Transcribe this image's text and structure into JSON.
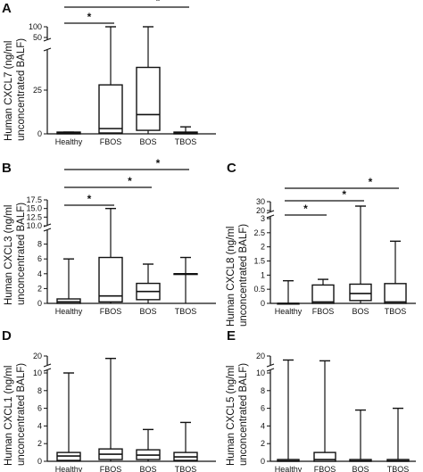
{
  "figure": {
    "panels": [
      {
        "letter": "A",
        "ylabel_line1": "Human CXCL7 (ng/ml",
        "ylabel_line2": "unconcentrated BALF)"
      },
      {
        "letter": "B",
        "ylabel_line1": "Human CXCL3 (ng/ml",
        "ylabel_line2": "unconcentrated BALF)"
      },
      {
        "letter": "C",
        "ylabel_line1": "Human CXCL8 (ng/ml",
        "ylabel_line2": "unconcentrated BALF)"
      },
      {
        "letter": "D",
        "ylabel_line1": "Human CXCL1 (ng/ml",
        "ylabel_line2": "unconcentrated BALF)"
      },
      {
        "letter": "E",
        "ylabel_line1": "Human CXCL5 (ng/ml",
        "ylabel_line2": "unconcentrated BALF)"
      }
    ]
  },
  "chart_data": [
    {
      "panel": "A",
      "type": "boxplot",
      "ylabel": "Human CXCL7 (ng/ml unconcentrated BALF)",
      "categories": [
        "Healthy",
        "FBOS",
        "BOS",
        "TBOS"
      ],
      "ylim": [
        0,
        100
      ],
      "axis_break": {
        "lower_max": 50,
        "upper_ticks": [
          50,
          100
        ]
      },
      "yticks": [
        "0",
        "25",
        "50",
        "100"
      ],
      "boxes": [
        {
          "min": 0,
          "q1": 0,
          "median": 0.5,
          "q3": 1,
          "max": 1
        },
        {
          "min": 0,
          "q1": 0.5,
          "median": 3,
          "q3": 28,
          "max": 100
        },
        {
          "min": 0,
          "q1": 2,
          "median": 11,
          "q3": 38,
          "max": 100
        },
        {
          "min": 0,
          "q1": 0,
          "median": 0.5,
          "q3": 1,
          "max": 4
        }
      ],
      "significance": [
        {
          "from": "Healthy",
          "to": "FBOS",
          "label": "*"
        },
        {
          "from": "Healthy",
          "to": "TBOS",
          "label": "*"
        }
      ]
    },
    {
      "panel": "B",
      "type": "boxplot",
      "ylabel": "Human CXCL3 (ng/ml unconcentrated BALF)",
      "categories": [
        "Healthy",
        "FBOS",
        "BOS",
        "TBOS"
      ],
      "ylim": [
        0,
        17.5
      ],
      "axis_break": {
        "lower_max": 10,
        "upper_ticks": [
          10.0,
          12.5,
          15.0,
          17.5
        ]
      },
      "yticks": [
        "0",
        "2",
        "4",
        "6",
        "8",
        "10.0",
        "12.5",
        "15.0",
        "17.5"
      ],
      "boxes": [
        {
          "min": 0,
          "q1": 0,
          "median": 0.2,
          "q3": 0.6,
          "max": 6
        },
        {
          "min": 0,
          "q1": 0.2,
          "median": 1,
          "q3": 6.2,
          "max": 15
        },
        {
          "min": 0,
          "q1": 0.5,
          "median": 1.6,
          "q3": 2.7,
          "max": 5.3
        },
        {
          "min": 0,
          "q1": 4,
          "median": 4,
          "q3": 4,
          "max": 6.2
        }
      ],
      "significance": [
        {
          "from": "Healthy",
          "to": "FBOS",
          "label": "*"
        },
        {
          "from": "Healthy",
          "to": "BOS",
          "label": "*"
        },
        {
          "from": "Healthy",
          "to": "TBOS",
          "label": "*"
        }
      ]
    },
    {
      "panel": "C",
      "type": "boxplot",
      "ylabel": "Human CXCL8 (ng/ml unconcentrated BALF)",
      "categories": [
        "Healthy",
        "FBOS",
        "BOS",
        "TBOS"
      ],
      "ylim": [
        0,
        30
      ],
      "axis_break": {
        "lower_max": 3,
        "upper_ticks": [
          20,
          30
        ]
      },
      "yticks": [
        "0",
        "0.5",
        "1",
        "1.5",
        "2",
        "2.5",
        "3",
        "20",
        "30"
      ],
      "boxes": [
        {
          "min": 0,
          "q1": 0,
          "median": 0,
          "q3": 0,
          "max": 0.8
        },
        {
          "min": 0,
          "q1": 0,
          "median": 0.05,
          "q3": 0.65,
          "max": 0.85
        },
        {
          "min": 0,
          "q1": 0.1,
          "median": 0.35,
          "q3": 0.68,
          "max": 25
        },
        {
          "min": 0,
          "q1": 0,
          "median": 0.05,
          "q3": 0.7,
          "max": 2.2
        }
      ],
      "significance": [
        {
          "from": "Healthy",
          "to": "FBOS",
          "label": "*"
        },
        {
          "from": "Healthy",
          "to": "BOS",
          "label": "*"
        },
        {
          "from": "Healthy",
          "to": "TBOS",
          "label": "*"
        }
      ]
    },
    {
      "panel": "D",
      "type": "boxplot",
      "ylabel": "Human CXCL1 (ng/ml unconcentrated BALF)",
      "categories": [
        "Healthy",
        "FBOS",
        "BOS",
        "TBOS"
      ],
      "ylim": [
        0,
        20
      ],
      "axis_break": {
        "lower_max": 10,
        "upper_ticks": [
          10,
          20
        ]
      },
      "yticks": [
        "0",
        "2",
        "4",
        "6",
        "8",
        "10",
        "20"
      ],
      "boxes": [
        {
          "min": 0,
          "q1": 0.1,
          "median": 0.6,
          "q3": 1,
          "max": 10
        },
        {
          "min": 0,
          "q1": 0.2,
          "median": 0.8,
          "q3": 1.4,
          "max": 17
        },
        {
          "min": 0,
          "q1": 0.2,
          "median": 0.7,
          "q3": 1.3,
          "max": 3.6
        },
        {
          "min": 0,
          "q1": 0.1,
          "median": 0.5,
          "q3": 1,
          "max": 4.4
        }
      ],
      "significance": []
    },
    {
      "panel": "E",
      "type": "boxplot",
      "ylabel": "Human CXCL5 (ng/ml unconcentrated BALF)",
      "categories": [
        "Healthy",
        "FBOS",
        "BOS",
        "TBOS"
      ],
      "ylim": [
        0,
        20
      ],
      "axis_break": {
        "lower_max": 10,
        "upper_ticks": [
          10,
          20
        ]
      },
      "yticks": [
        "0",
        "2",
        "4",
        "6",
        "8",
        "10",
        "20"
      ],
      "boxes": [
        {
          "min": 0,
          "q1": 0,
          "median": 0.05,
          "q3": 0.2,
          "max": 15
        },
        {
          "min": 0,
          "q1": 0,
          "median": 0.2,
          "q3": 1,
          "max": 14
        },
        {
          "min": 0,
          "q1": 0,
          "median": 0.05,
          "q3": 0.2,
          "max": 5.8
        },
        {
          "min": 0,
          "q1": 0,
          "median": 0.05,
          "q3": 0.2,
          "max": 6
        }
      ],
      "significance": []
    }
  ]
}
